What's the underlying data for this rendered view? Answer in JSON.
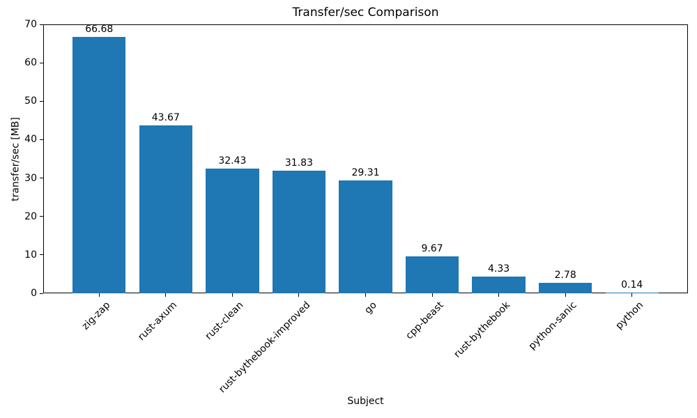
{
  "chart_data": {
    "type": "bar",
    "title": "Transfer/sec Comparison",
    "xlabel": "Subject",
    "ylabel": "transfer/sec [MB]",
    "categories": [
      "zig-zap",
      "rust-axum",
      "rust-clean",
      "rust-bythebook-improved",
      "go",
      "cpp-beast",
      "rust-bythebook",
      "python-sanic",
      "python"
    ],
    "values": [
      66.68,
      43.67,
      32.43,
      31.83,
      29.31,
      9.67,
      4.33,
      2.78,
      0.14
    ],
    "value_labels": [
      "66.68",
      "43.67",
      "32.43",
      "31.83",
      "29.31",
      "9.67",
      "4.33",
      "2.78",
      "0.14"
    ],
    "ylim": [
      0,
      70
    ],
    "yticks": [
      0,
      10,
      20,
      30,
      40,
      50,
      60,
      70
    ],
    "bar_color": "#1f77b4",
    "grid": false,
    "legend": "none",
    "x_tick_rotation_deg": 45
  }
}
